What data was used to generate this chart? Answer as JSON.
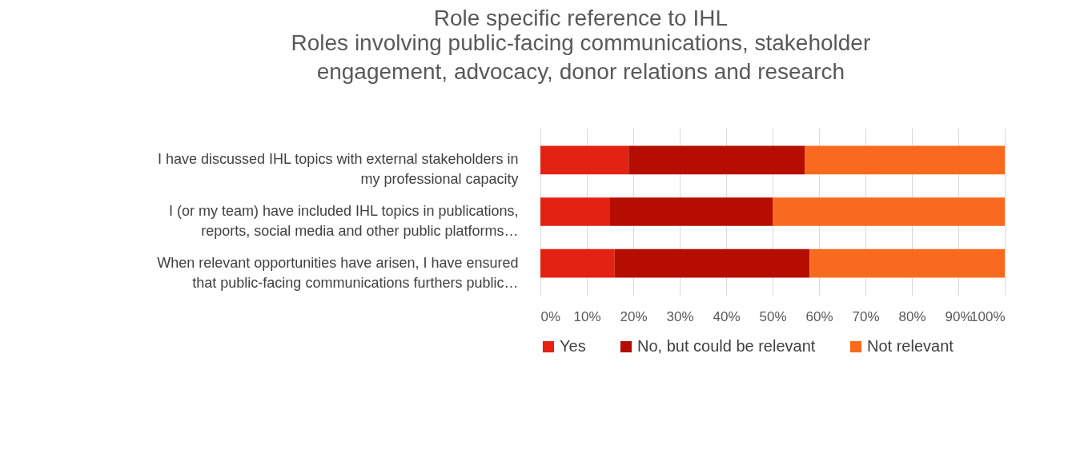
{
  "chart_data": {
    "type": "bar",
    "orientation": "horizontal",
    "stacked": true,
    "title": "Role specific reference to IHL",
    "subtitle": "Roles involving public-facing communications, stakeholder engagement, advocacy, donor relations and research",
    "categories": [
      "I have discussed IHL topics with external stakeholders in my professional capacity",
      "I (or my team) have included IHL topics in publications, reports, social media and other public platforms…",
      "When relevant opportunities have arisen, I have ensured that public-facing communications furthers public…"
    ],
    "series": [
      {
        "name": "Yes",
        "color": "#e32214",
        "values": [
          19,
          15,
          16
        ]
      },
      {
        "name": "No, but could be relevant",
        "color": "#b50e00",
        "values": [
          38,
          35,
          42
        ]
      },
      {
        "name": "Not relevant",
        "color": "#fa6a1e",
        "values": [
          43,
          50,
          42
        ]
      }
    ],
    "xlim": [
      0,
      100
    ],
    "xticks": [
      {
        "value": 0,
        "label": "0%"
      },
      {
        "value": 10,
        "label": "10%"
      },
      {
        "value": 20,
        "label": "20%"
      },
      {
        "value": 30,
        "label": "30%"
      },
      {
        "value": 40,
        "label": "40%"
      },
      {
        "value": 50,
        "label": "50%"
      },
      {
        "value": 60,
        "label": "60%"
      },
      {
        "value": 70,
        "label": "70%"
      },
      {
        "value": 80,
        "label": "80%"
      },
      {
        "value": 90,
        "label": "90%"
      },
      {
        "value": 100,
        "label": "100%"
      }
    ],
    "grid": "x",
    "legend": "bottom"
  }
}
